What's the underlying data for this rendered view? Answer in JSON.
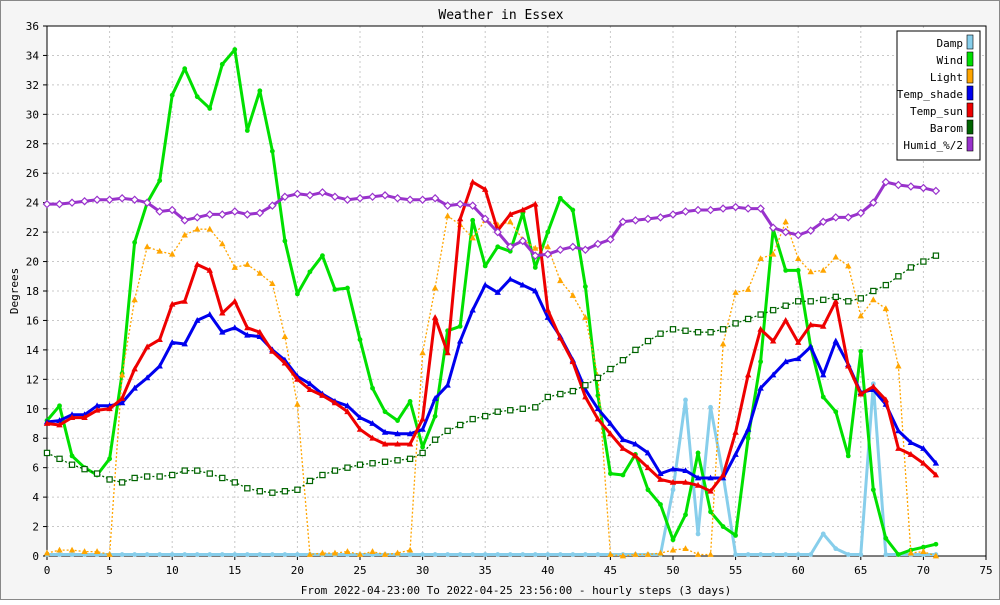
{
  "chart_data": {
    "type": "line",
    "title": "Weather in Essex",
    "xlabel": "From 2022-04-23:00 To 2022-04-25 23:56:00 - hourly steps (3 days)",
    "ylabel": "Degrees",
    "xlim": [
      0,
      75
    ],
    "ylim": [
      0,
      36
    ],
    "x_ticks": [
      0,
      5,
      10,
      15,
      20,
      25,
      30,
      35,
      40,
      45,
      50,
      55,
      60,
      65,
      70,
      75
    ],
    "y_ticks": [
      0,
      2,
      4,
      6,
      8,
      10,
      12,
      14,
      16,
      18,
      20,
      22,
      24,
      26,
      28,
      30,
      32,
      34,
      36
    ],
    "grid": true,
    "legend_position": "top-right",
    "series": [
      {
        "name": "Damp",
        "color": "#87ceeb",
        "marker": "circle",
        "style": "solid",
        "x": [
          0,
          1,
          2,
          3,
          4,
          5,
          6,
          7,
          8,
          9,
          10,
          11,
          12,
          13,
          14,
          15,
          16,
          17,
          18,
          19,
          20,
          21,
          22,
          23,
          24,
          25,
          26,
          27,
          28,
          29,
          30,
          31,
          32,
          33,
          34,
          35,
          36,
          37,
          38,
          39,
          40,
          41,
          42,
          43,
          44,
          45,
          46,
          47,
          48,
          49,
          50,
          51,
          52,
          53,
          54,
          55,
          56,
          57,
          58,
          59,
          60,
          61,
          62,
          63,
          64,
          65,
          66,
          67,
          68,
          69,
          70,
          71
        ],
        "values": [
          0.1,
          0.1,
          0.1,
          0.1,
          0.1,
          0.1,
          0.1,
          0.1,
          0.1,
          0.1,
          0.1,
          0.1,
          0.1,
          0.1,
          0.1,
          0.1,
          0.1,
          0.1,
          0.1,
          0.1,
          0.1,
          0.1,
          0.1,
          0.1,
          0.1,
          0.1,
          0.1,
          0.1,
          0.1,
          0.1,
          0.1,
          0.1,
          0.1,
          0.1,
          0.1,
          0.1,
          0.1,
          0.1,
          0.1,
          0.1,
          0.1,
          0.1,
          0.1,
          0.1,
          0.1,
          0.1,
          0.1,
          0.1,
          0.1,
          0.1,
          4.5,
          10.6,
          1.5,
          10.1,
          5.5,
          0.1,
          0.1,
          0.1,
          0.1,
          0.1,
          0.1,
          0.1,
          1.5,
          0.5,
          0.1,
          0.1,
          11.7,
          0.1,
          0.1,
          0.1,
          0.1,
          0.1
        ]
      },
      {
        "name": "Wind",
        "color": "#00e000",
        "marker": "circle",
        "style": "solid",
        "x": [
          0,
          1,
          2,
          3,
          4,
          5,
          6,
          7,
          8,
          9,
          10,
          11,
          12,
          13,
          14,
          15,
          16,
          17,
          18,
          19,
          20,
          21,
          22,
          23,
          24,
          25,
          26,
          27,
          28,
          29,
          30,
          31,
          32,
          33,
          34,
          35,
          36,
          37,
          38,
          39,
          40,
          41,
          42,
          43,
          44,
          45,
          46,
          47,
          48,
          49,
          50,
          51,
          52,
          53,
          54,
          55,
          56,
          57,
          58,
          59,
          60,
          61,
          62,
          63,
          64,
          65,
          66,
          67,
          68,
          69,
          70,
          71
        ],
        "values": [
          9.2,
          10.2,
          6.8,
          6.0,
          5.5,
          6.6,
          12.4,
          21.3,
          24.0,
          25.5,
          31.3,
          33.1,
          31.2,
          30.4,
          33.4,
          34.4,
          28.9,
          31.6,
          27.5,
          21.4,
          17.8,
          19.3,
          20.4,
          18.1,
          18.2,
          14.7,
          11.4,
          9.8,
          9.2,
          10.5,
          7.4,
          9.5,
          15.3,
          15.6,
          22.8,
          19.7,
          21.0,
          20.7,
          23.3,
          19.6,
          22.0,
          24.3,
          23.5,
          18.3,
          10.9,
          5.6,
          5.5,
          6.9,
          4.5,
          3.5,
          1.1,
          2.8,
          7.0,
          3.0,
          2.0,
          1.4,
          8.0,
          13.2,
          22.2,
          19.4,
          19.4,
          14.2,
          10.8,
          9.8,
          6.8,
          13.9,
          4.5,
          1.2,
          0.1,
          0.4,
          0.6,
          0.8
        ]
      },
      {
        "name": "Light",
        "color": "#ffa500",
        "marker": "triangle",
        "style": "dotted",
        "x": [
          0,
          1,
          2,
          3,
          4,
          5,
          6,
          7,
          8,
          9,
          10,
          11,
          12,
          13,
          14,
          15,
          16,
          17,
          18,
          19,
          20,
          21,
          22,
          23,
          24,
          25,
          26,
          27,
          28,
          29,
          30,
          31,
          32,
          33,
          34,
          35,
          36,
          37,
          38,
          39,
          40,
          41,
          42,
          43,
          44,
          45,
          46,
          47,
          48,
          49,
          50,
          51,
          52,
          53,
          54,
          55,
          56,
          57,
          58,
          59,
          60,
          61,
          62,
          63,
          64,
          65,
          66,
          67,
          68,
          69,
          70,
          71
        ],
        "values": [
          0.2,
          0.4,
          0.4,
          0.3,
          0.3,
          0.1,
          12.3,
          17.4,
          21.0,
          20.7,
          20.5,
          21.8,
          22.2,
          22.2,
          21.2,
          19.6,
          19.8,
          19.2,
          18.5,
          14.9,
          10.3,
          0.1,
          0.2,
          0.2,
          0.3,
          0.1,
          0.3,
          0.1,
          0.2,
          0.4,
          13.8,
          18.2,
          23.1,
          22.5,
          21.6,
          22.8,
          22.5,
          22.7,
          21.5,
          20.9,
          21.0,
          18.7,
          17.7,
          16.2,
          12.2,
          0.1,
          0.0,
          0.1,
          0.1,
          0.2,
          0.4,
          0.5,
          0.1,
          0.1,
          14.4,
          17.9,
          18.1,
          20.2,
          20.5,
          22.7,
          20.2,
          19.3,
          19.4,
          20.3,
          19.7,
          16.3,
          17.4,
          16.8,
          12.9,
          0.2,
          0.3,
          0.0
        ]
      },
      {
        "name": "Temp_shade",
        "color": "#0000ee",
        "marker": "triangle",
        "style": "solid",
        "x": [
          0,
          1,
          2,
          3,
          4,
          5,
          6,
          7,
          8,
          9,
          10,
          11,
          12,
          13,
          14,
          15,
          16,
          17,
          18,
          19,
          20,
          21,
          22,
          23,
          24,
          25,
          26,
          27,
          28,
          29,
          30,
          31,
          32,
          33,
          34,
          35,
          36,
          37,
          38,
          39,
          40,
          41,
          42,
          43,
          44,
          45,
          46,
          47,
          48,
          49,
          50,
          51,
          52,
          53,
          54,
          55,
          56,
          57,
          58,
          59,
          60,
          61,
          62,
          63,
          64,
          65,
          66,
          67,
          68,
          69,
          70,
          71
        ],
        "values": [
          9.1,
          9.2,
          9.6,
          9.6,
          10.2,
          10.2,
          10.4,
          11.4,
          12.1,
          12.9,
          14.5,
          14.4,
          16.0,
          16.4,
          15.2,
          15.5,
          15.0,
          14.9,
          14.0,
          13.3,
          12.2,
          11.7,
          11.0,
          10.5,
          10.2,
          9.4,
          9.0,
          8.4,
          8.3,
          8.3,
          8.6,
          10.7,
          11.6,
          14.6,
          16.7,
          18.4,
          17.9,
          18.8,
          18.4,
          18.0,
          16.2,
          14.9,
          13.3,
          11.3,
          10.0,
          9.0,
          7.9,
          7.6,
          7.0,
          5.6,
          5.9,
          5.8,
          5.3,
          5.3,
          5.3,
          6.9,
          8.6,
          11.4,
          12.3,
          13.2,
          13.4,
          14.2,
          12.3,
          14.6,
          13.0,
          11.1,
          11.3,
          10.3,
          8.5,
          7.7,
          7.3,
          6.3
        ]
      },
      {
        "name": "Temp_sun",
        "color": "#ee0000",
        "marker": "triangle",
        "style": "solid",
        "x": [
          0,
          1,
          2,
          3,
          4,
          5,
          6,
          7,
          8,
          9,
          10,
          11,
          12,
          13,
          14,
          15,
          16,
          17,
          18,
          19,
          20,
          21,
          22,
          23,
          24,
          25,
          26,
          27,
          28,
          29,
          30,
          31,
          32,
          33,
          34,
          35,
          36,
          37,
          38,
          39,
          40,
          41,
          42,
          43,
          44,
          45,
          46,
          47,
          48,
          49,
          50,
          51,
          52,
          53,
          54,
          55,
          56,
          57,
          58,
          59,
          60,
          61,
          62,
          63,
          64,
          65,
          66,
          67,
          68,
          69,
          70,
          71
        ],
        "values": [
          9.0,
          8.9,
          9.4,
          9.4,
          9.9,
          10.0,
          10.7,
          12.7,
          14.2,
          14.7,
          17.1,
          17.3,
          19.8,
          19.4,
          16.5,
          17.3,
          15.5,
          15.2,
          13.9,
          13.1,
          12.0,
          11.3,
          10.9,
          10.4,
          9.8,
          8.6,
          8.0,
          7.6,
          7.6,
          7.6,
          9.3,
          16.2,
          13.8,
          22.9,
          25.4,
          24.9,
          22.1,
          23.2,
          23.5,
          23.9,
          16.7,
          14.8,
          13.2,
          10.8,
          9.3,
          8.3,
          7.3,
          6.8,
          6.0,
          5.2,
          5.0,
          5.0,
          4.8,
          4.4,
          5.5,
          8.4,
          12.3,
          15.4,
          14.6,
          16.0,
          14.5,
          15.7,
          15.6,
          17.3,
          12.9,
          11.0,
          11.5,
          10.6,
          7.3,
          6.9,
          6.3,
          5.5
        ]
      },
      {
        "name": "Barom",
        "color": "#006400",
        "marker": "square",
        "style": "dotted",
        "x": [
          0,
          1,
          2,
          3,
          4,
          5,
          6,
          7,
          8,
          9,
          10,
          11,
          12,
          13,
          14,
          15,
          16,
          17,
          18,
          19,
          20,
          21,
          22,
          23,
          24,
          25,
          26,
          27,
          28,
          29,
          30,
          31,
          32,
          33,
          34,
          35,
          36,
          37,
          38,
          39,
          40,
          41,
          42,
          43,
          44,
          45,
          46,
          47,
          48,
          49,
          50,
          51,
          52,
          53,
          54,
          55,
          56,
          57,
          58,
          59,
          60,
          61,
          62,
          63,
          64,
          65,
          66,
          67,
          68,
          69,
          70,
          71
        ],
        "values": [
          7.0,
          6.6,
          6.2,
          5.9,
          5.6,
          5.2,
          5.0,
          5.3,
          5.4,
          5.4,
          5.5,
          5.8,
          5.8,
          5.6,
          5.3,
          5.0,
          4.6,
          4.4,
          4.3,
          4.4,
          4.5,
          5.1,
          5.5,
          5.8,
          6.0,
          6.2,
          6.3,
          6.4,
          6.5,
          6.6,
          7.0,
          7.9,
          8.5,
          8.9,
          9.3,
          9.5,
          9.8,
          9.9,
          10.0,
          10.1,
          10.8,
          11.0,
          11.2,
          11.6,
          12.1,
          12.7,
          13.3,
          14.0,
          14.6,
          15.1,
          15.4,
          15.3,
          15.2,
          15.2,
          15.4,
          15.8,
          16.1,
          16.4,
          16.7,
          17.0,
          17.3,
          17.3,
          17.4,
          17.6,
          17.3,
          17.5,
          18.0,
          18.4,
          19.0,
          19.6,
          20.0,
          20.4
        ]
      },
      {
        "name": "Humid_%/2",
        "color": "#9932cc",
        "marker": "diamond",
        "style": "solid",
        "x": [
          0,
          1,
          2,
          3,
          4,
          5,
          6,
          7,
          8,
          9,
          10,
          11,
          12,
          13,
          14,
          15,
          16,
          17,
          18,
          19,
          20,
          21,
          22,
          23,
          24,
          25,
          26,
          27,
          28,
          29,
          30,
          31,
          32,
          33,
          34,
          35,
          36,
          37,
          38,
          39,
          40,
          41,
          42,
          43,
          44,
          45,
          46,
          47,
          48,
          49,
          50,
          51,
          52,
          53,
          54,
          55,
          56,
          57,
          58,
          59,
          60,
          61,
          62,
          63,
          64,
          65,
          66,
          67,
          68,
          69,
          70,
          71
        ],
        "values": [
          23.9,
          23.9,
          24.0,
          24.1,
          24.2,
          24.2,
          24.3,
          24.2,
          24.0,
          23.4,
          23.5,
          22.8,
          23.0,
          23.2,
          23.2,
          23.4,
          23.2,
          23.3,
          23.8,
          24.4,
          24.6,
          24.5,
          24.7,
          24.4,
          24.2,
          24.3,
          24.4,
          24.5,
          24.3,
          24.2,
          24.2,
          24.3,
          23.8,
          23.9,
          23.8,
          22.9,
          22.0,
          21.0,
          21.4,
          20.4,
          20.5,
          20.8,
          21.0,
          20.8,
          21.2,
          21.5,
          22.7,
          22.8,
          22.9,
          23.0,
          23.2,
          23.4,
          23.5,
          23.5,
          23.6,
          23.7,
          23.6,
          23.6,
          22.3,
          22.0,
          21.8,
          22.1,
          22.7,
          23.0,
          23.0,
          23.3,
          24.0,
          25.4,
          25.2,
          25.1,
          25.0,
          24.8
        ]
      }
    ]
  }
}
